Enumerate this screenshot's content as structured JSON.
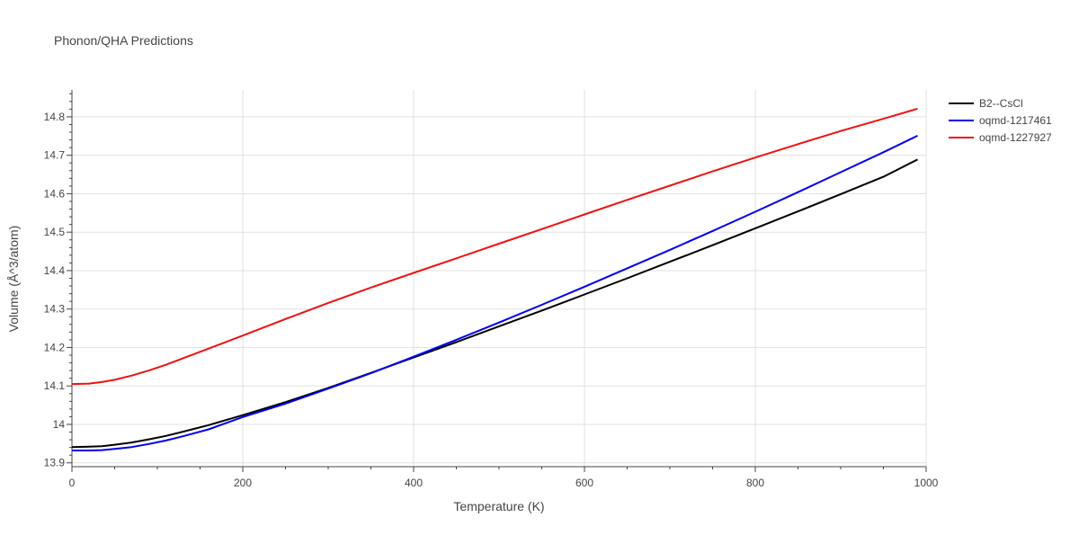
{
  "chart_data": {
    "type": "line",
    "title": "Phonon/QHA Predictions",
    "xlabel": "Temperature (K)",
    "ylabel": "Volume (Å^3/atom)",
    "xlim": [
      0,
      1000
    ],
    "ylim": [
      13.89,
      14.87
    ],
    "x_ticks": [
      0,
      200,
      400,
      600,
      800,
      1000
    ],
    "x_tick_labels": [
      "0",
      "200",
      "400",
      "600",
      "800",
      "1000"
    ],
    "y_ticks": [
      13.9,
      14.0,
      14.1,
      14.2,
      14.3,
      14.4,
      14.5,
      14.6,
      14.7,
      14.8
    ],
    "y_tick_labels": [
      "13.9",
      "14",
      "14.1",
      "14.2",
      "14.3",
      "14.4",
      "14.5",
      "14.6",
      "14.7",
      "14.8"
    ],
    "grid": true,
    "legend_position": "top-right",
    "series": [
      {
        "name": "B2--CsCl",
        "color": "#000000",
        "x": [
          0,
          20,
          35,
          50,
          70,
          90,
          110,
          130,
          160,
          200,
          250,
          300,
          350,
          400,
          450,
          500,
          550,
          600,
          650,
          700,
          750,
          800,
          850,
          900,
          950,
          990
        ],
        "y": [
          13.941,
          13.942,
          13.943,
          13.947,
          13.953,
          13.961,
          13.97,
          13.981,
          13.998,
          14.024,
          14.058,
          14.095,
          14.134,
          14.174,
          14.214,
          14.255,
          14.296,
          14.338,
          14.38,
          14.423,
          14.466,
          14.51,
          14.554,
          14.599,
          14.644,
          14.689
        ]
      },
      {
        "name": "oqmd-1217461",
        "color": "#0000ee",
        "x": [
          0,
          20,
          35,
          50,
          70,
          90,
          110,
          130,
          160,
          200,
          250,
          300,
          350,
          400,
          450,
          500,
          550,
          600,
          650,
          700,
          750,
          800,
          850,
          900,
          950,
          990
        ],
        "y": [
          13.932,
          13.932,
          13.933,
          13.936,
          13.941,
          13.949,
          13.958,
          13.969,
          13.987,
          14.019,
          14.054,
          14.093,
          14.133,
          14.176,
          14.22,
          14.265,
          14.311,
          14.358,
          14.406,
          14.454,
          14.503,
          14.553,
          14.604,
          14.656,
          14.708,
          14.751
        ]
      },
      {
        "name": "oqmd-1227927",
        "color": "#ee1111",
        "x": [
          0,
          20,
          35,
          50,
          70,
          90,
          110,
          130,
          160,
          200,
          250,
          300,
          350,
          400,
          450,
          500,
          550,
          600,
          650,
          700,
          750,
          800,
          850,
          900,
          950,
          990
        ],
        "y": [
          14.105,
          14.106,
          14.11,
          14.116,
          14.127,
          14.14,
          14.155,
          14.172,
          14.197,
          14.231,
          14.274,
          14.316,
          14.356,
          14.394,
          14.432,
          14.47,
          14.508,
          14.546,
          14.584,
          14.621,
          14.658,
          14.694,
          14.729,
          14.763,
          14.795,
          14.821
        ]
      }
    ]
  }
}
